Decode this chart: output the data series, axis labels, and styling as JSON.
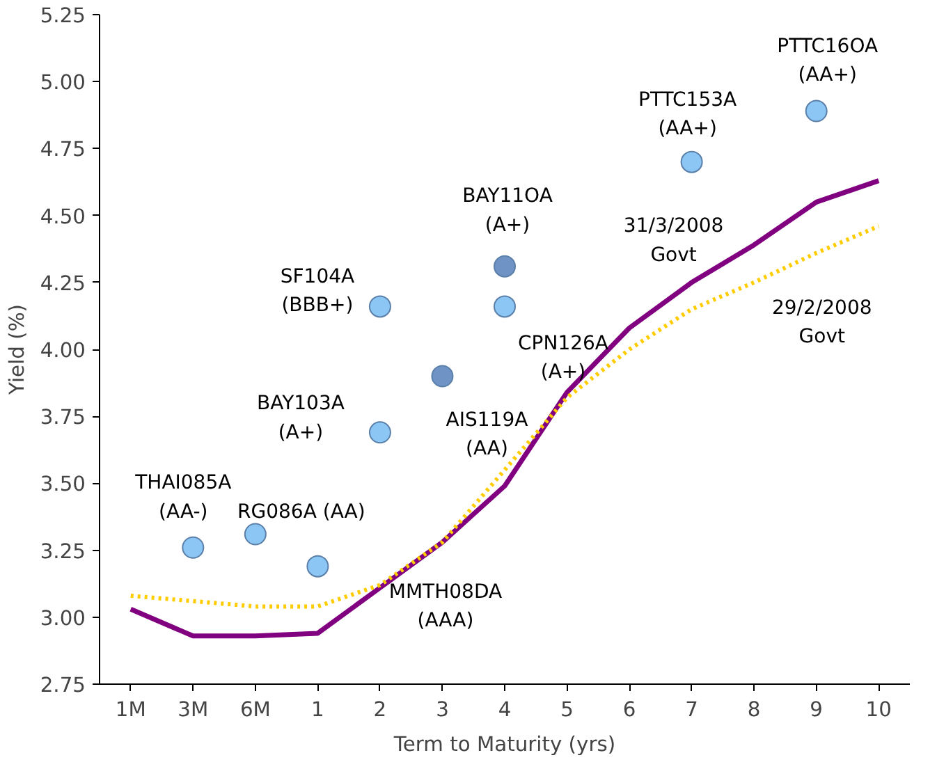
{
  "chart_data": {
    "type": "scatter",
    "ylabel": "Yield (%)",
    "xlabel": "Term to Maturity (yrs)",
    "categories": [
      "1M",
      "3M",
      "6M",
      "1",
      "2",
      "3",
      "4",
      "5",
      "6",
      "7",
      "8",
      "9",
      "10"
    ],
    "ylim": [
      2.75,
      5.25
    ],
    "yticks": [
      {
        "value": 2.75,
        "label": "2.75"
      },
      {
        "value": 3,
        "label": "3.00"
      },
      {
        "value": 3.25,
        "label": "3.25"
      },
      {
        "value": 3.5,
        "label": "3.50"
      },
      {
        "value": 3.75,
        "label": "3.75"
      },
      {
        "value": 4,
        "label": "4.00"
      },
      {
        "value": 4.25,
        "label": "4.25"
      },
      {
        "value": 4.5,
        "label": "4.50"
      },
      {
        "value": 4.75,
        "label": "4.75"
      },
      {
        "value": 5,
        "label": "5.00"
      },
      {
        "value": 5.25,
        "label": "5.25"
      }
    ],
    "grid": false,
    "marker": "circle",
    "series": [
      {
        "type": "line",
        "color": "#800080",
        "line_style": "solid",
        "marker": "none",
        "values": [
          3.03,
          2.93,
          2.93,
          2.94,
          3.11,
          3.28,
          3.49,
          3.84,
          4.08,
          4.25,
          4.39,
          4.55,
          4.63
        ]
      },
      {
        "type": "line",
        "color": "#ffcc00",
        "line_style": "dotted",
        "marker": "none",
        "values": [
          3.08,
          3.06,
          3.04,
          3.04,
          3.12,
          3.28,
          3.55,
          3.82,
          4.0,
          4.15,
          4.25,
          4.36,
          4.46
        ]
      },
      {
        "color": "#8cc6f5",
        "x": [
          "3M",
          "6M",
          "1",
          "2",
          "2",
          "4",
          "7",
          "9"
        ],
        "values": [
          3.26,
          3.31,
          3.19,
          3.69,
          4.16,
          4.16,
          4.7,
          4.89
        ]
      },
      {
        "color": "#6f93c4",
        "x": [
          "3",
          "4"
        ],
        "values": [
          3.9,
          4.31
        ]
      }
    ],
    "annotations": [
      {
        "text": "THAI085A\n(AA-)",
        "x": "3M",
        "y": 3.26
      },
      {
        "text": "RG086A (AA)",
        "x": "6M",
        "y": 3.31
      },
      "MMTH08DA\n(AAA)",
      {
        "text": "BAY103A\n(A+)",
        "x": "2",
        "y": 3.69
      },
      {
        "text": "SF104A\n(BBB+)",
        "x": "2",
        "y": 4.16
      },
      {
        "text": "BAY11OA\n(A+)",
        "x": "4",
        "y": 4.31
      },
      {
        "text": "AIS119A\n(AA)",
        "x": "3",
        "y": 3.9
      },
      {
        "text": "CPN126A\n(A+)",
        "x": "4",
        "y": 4.16
      },
      {
        "text": "PTTC153A\n(AA+)",
        "x": "7",
        "y": 4.7
      },
      {
        "text": "PTTC16OA\n(AA+)",
        "x": "9",
        "y": 4.89
      },
      {
        "text": "31/3/2008\nGovt",
        "x": "7",
        "y": 4.25
      },
      "29/2/2008\nGovt"
    ]
  }
}
